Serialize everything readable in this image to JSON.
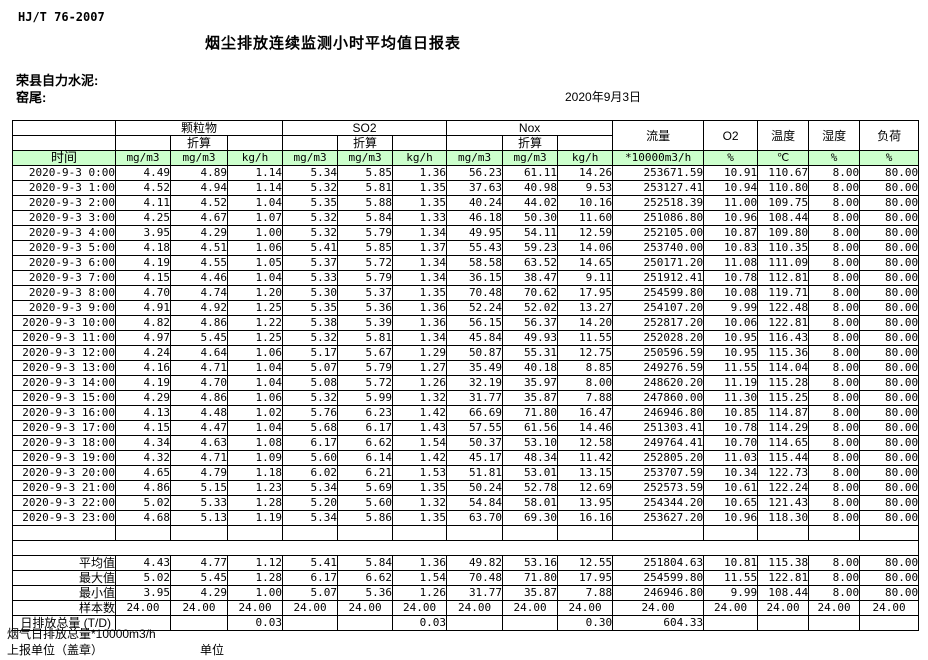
{
  "page": {
    "standard_no": "HJ/T  76-2007",
    "title": "烟尘排放连续监测小时平均值日报表",
    "company": "荣县自力水泥:",
    "location": "窑尾:",
    "date": "2020年9月3日"
  },
  "colors": {
    "header_green": "#CCFFCC",
    "border": "#000000"
  },
  "table": {
    "time_label": "时间",
    "converted_label": "折算",
    "groups": {
      "pm": "颗粒物",
      "so2": "SO2",
      "nox": "Nox",
      "flow": "流量",
      "o2": "O2",
      "temp": "温度",
      "humidity": "湿度",
      "load": "负荷"
    },
    "units": [
      "mg/m3",
      "mg/m3",
      "kg/h",
      "mg/m3",
      "mg/m3",
      "kg/h",
      "mg/m3",
      "mg/m3",
      "kg/h",
      "*10000m3/h",
      "%",
      "℃",
      "%",
      "%"
    ],
    "rows": [
      {
        "time": "2020-9-3 0:00",
        "values": [
          "4.49",
          "4.89",
          "1.14",
          "5.34",
          "5.85",
          "1.36",
          "56.23",
          "61.11",
          "14.26",
          "253671.59",
          "10.91",
          "110.67",
          "8.00",
          "80.00"
        ]
      },
      {
        "time": "2020-9-3 1:00",
        "values": [
          "4.52",
          "4.94",
          "1.14",
          "5.32",
          "5.81",
          "1.35",
          "37.63",
          "40.98",
          "9.53",
          "253127.41",
          "10.94",
          "110.80",
          "8.00",
          "80.00"
        ]
      },
      {
        "time": "2020-9-3 2:00",
        "values": [
          "4.11",
          "4.52",
          "1.04",
          "5.35",
          "5.88",
          "1.35",
          "40.24",
          "44.02",
          "10.16",
          "252518.39",
          "11.00",
          "109.75",
          "8.00",
          "80.00"
        ]
      },
      {
        "time": "2020-9-3 3:00",
        "values": [
          "4.25",
          "4.67",
          "1.07",
          "5.32",
          "5.84",
          "1.33",
          "46.18",
          "50.30",
          "11.60",
          "251086.80",
          "10.96",
          "108.44",
          "8.00",
          "80.00"
        ]
      },
      {
        "time": "2020-9-3 4:00",
        "values": [
          "3.95",
          "4.29",
          "1.00",
          "5.32",
          "5.79",
          "1.34",
          "49.95",
          "54.11",
          "12.59",
          "252105.00",
          "10.87",
          "109.80",
          "8.00",
          "80.00"
        ]
      },
      {
        "time": "2020-9-3 5:00",
        "values": [
          "4.18",
          "4.51",
          "1.06",
          "5.41",
          "5.85",
          "1.37",
          "55.43",
          "59.23",
          "14.06",
          "253740.00",
          "10.83",
          "110.35",
          "8.00",
          "80.00"
        ]
      },
      {
        "time": "2020-9-3 6:00",
        "values": [
          "4.19",
          "4.55",
          "1.05",
          "5.37",
          "5.72",
          "1.34",
          "58.58",
          "63.52",
          "14.65",
          "250171.20",
          "11.08",
          "111.09",
          "8.00",
          "80.00"
        ]
      },
      {
        "time": "2020-9-3 7:00",
        "values": [
          "4.15",
          "4.46",
          "1.04",
          "5.33",
          "5.79",
          "1.34",
          "36.15",
          "38.47",
          "9.11",
          "251912.41",
          "10.78",
          "112.81",
          "8.00",
          "80.00"
        ]
      },
      {
        "time": "2020-9-3 8:00",
        "values": [
          "4.70",
          "4.74",
          "1.20",
          "5.30",
          "5.37",
          "1.35",
          "70.48",
          "70.62",
          "17.95",
          "254599.80",
          "10.08",
          "119.71",
          "8.00",
          "80.00"
        ]
      },
      {
        "time": "2020-9-3 9:00",
        "values": [
          "4.91",
          "4.92",
          "1.25",
          "5.35",
          "5.36",
          "1.36",
          "52.24",
          "52.02",
          "13.27",
          "254107.20",
          "9.99",
          "122.48",
          "8.00",
          "80.00"
        ]
      },
      {
        "time": "2020-9-3 10:00",
        "values": [
          "4.82",
          "4.86",
          "1.22",
          "5.38",
          "5.39",
          "1.36",
          "56.15",
          "56.37",
          "14.20",
          "252817.20",
          "10.06",
          "122.81",
          "8.00",
          "80.00"
        ]
      },
      {
        "time": "2020-9-3 11:00",
        "values": [
          "4.97",
          "5.45",
          "1.25",
          "5.32",
          "5.81",
          "1.34",
          "45.84",
          "49.93",
          "11.55",
          "252028.20",
          "10.95",
          "116.43",
          "8.00",
          "80.00"
        ]
      },
      {
        "time": "2020-9-3 12:00",
        "values": [
          "4.24",
          "4.64",
          "1.06",
          "5.17",
          "5.67",
          "1.29",
          "50.87",
          "55.31",
          "12.75",
          "250596.59",
          "10.95",
          "115.36",
          "8.00",
          "80.00"
        ]
      },
      {
        "time": "2020-9-3 13:00",
        "values": [
          "4.16",
          "4.71",
          "1.04",
          "5.07",
          "5.79",
          "1.27",
          "35.49",
          "40.18",
          "8.85",
          "249276.59",
          "11.55",
          "114.04",
          "8.00",
          "80.00"
        ]
      },
      {
        "time": "2020-9-3 14:00",
        "values": [
          "4.19",
          "4.70",
          "1.04",
          "5.08",
          "5.72",
          "1.26",
          "32.19",
          "35.97",
          "8.00",
          "248620.20",
          "11.19",
          "115.28",
          "8.00",
          "80.00"
        ]
      },
      {
        "time": "2020-9-3 15:00",
        "values": [
          "4.29",
          "4.86",
          "1.06",
          "5.32",
          "5.99",
          "1.32",
          "31.77",
          "35.87",
          "7.88",
          "247860.00",
          "11.30",
          "115.25",
          "8.00",
          "80.00"
        ]
      },
      {
        "time": "2020-9-3 16:00",
        "values": [
          "4.13",
          "4.48",
          "1.02",
          "5.76",
          "6.23",
          "1.42",
          "66.69",
          "71.80",
          "16.47",
          "246946.80",
          "10.85",
          "114.87",
          "8.00",
          "80.00"
        ]
      },
      {
        "time": "2020-9-3 17:00",
        "values": [
          "4.15",
          "4.47",
          "1.04",
          "5.68",
          "6.17",
          "1.43",
          "57.55",
          "61.56",
          "14.46",
          "251303.41",
          "10.78",
          "114.29",
          "8.00",
          "80.00"
        ]
      },
      {
        "time": "2020-9-3 18:00",
        "values": [
          "4.34",
          "4.63",
          "1.08",
          "6.17",
          "6.62",
          "1.54",
          "50.37",
          "53.10",
          "12.58",
          "249764.41",
          "10.70",
          "114.65",
          "8.00",
          "80.00"
        ]
      },
      {
        "time": "2020-9-3 19:00",
        "values": [
          "4.32",
          "4.71",
          "1.09",
          "5.60",
          "6.14",
          "1.42",
          "45.17",
          "48.34",
          "11.42",
          "252805.20",
          "11.03",
          "115.44",
          "8.00",
          "80.00"
        ]
      },
      {
        "time": "2020-9-3 20:00",
        "values": [
          "4.65",
          "4.79",
          "1.18",
          "6.02",
          "6.21",
          "1.53",
          "51.81",
          "53.01",
          "13.15",
          "253707.59",
          "10.34",
          "122.73",
          "8.00",
          "80.00"
        ]
      },
      {
        "time": "2020-9-3 21:00",
        "values": [
          "4.86",
          "5.15",
          "1.23",
          "5.34",
          "5.69",
          "1.35",
          "50.24",
          "52.78",
          "12.69",
          "252573.59",
          "10.61",
          "122.24",
          "8.00",
          "80.00"
        ]
      },
      {
        "time": "2020-9-3 22:00",
        "values": [
          "5.02",
          "5.33",
          "1.28",
          "5.20",
          "5.60",
          "1.32",
          "54.84",
          "58.01",
          "13.95",
          "254344.20",
          "10.65",
          "121.43",
          "8.00",
          "80.00"
        ]
      },
      {
        "time": "2020-9-3 23:00",
        "values": [
          "4.68",
          "5.13",
          "1.19",
          "5.34",
          "5.86",
          "1.35",
          "63.70",
          "69.30",
          "16.16",
          "253627.20",
          "10.96",
          "118.30",
          "8.00",
          "80.00"
        ]
      }
    ],
    "summary": [
      {
        "label": "平均值",
        "align": "right",
        "values": [
          "4.43",
          "4.77",
          "1.12",
          "5.41",
          "5.84",
          "1.36",
          "49.82",
          "53.16",
          "12.55",
          "251804.63",
          "10.81",
          "115.38",
          "8.00",
          "80.00"
        ]
      },
      {
        "label": "最大值",
        "align": "right",
        "values": [
          "5.02",
          "5.45",
          "1.28",
          "6.17",
          "6.62",
          "1.54",
          "70.48",
          "71.80",
          "17.95",
          "254599.80",
          "11.55",
          "122.81",
          "8.00",
          "80.00"
        ]
      },
      {
        "label": "最小值",
        "align": "right",
        "values": [
          "3.95",
          "4.29",
          "1.00",
          "5.07",
          "5.36",
          "1.26",
          "31.77",
          "35.87",
          "7.88",
          "246946.80",
          "9.99",
          "108.44",
          "8.00",
          "80.00"
        ]
      },
      {
        "label": "样本数",
        "align": "center",
        "values": [
          "24.00",
          "24.00",
          "24.00",
          "24.00",
          "24.00",
          "24.00",
          "24.00",
          "24.00",
          "24.00",
          "24.00",
          "24.00",
          "24.00",
          "24.00",
          "24.00"
        ]
      },
      {
        "label": "日排放总量 (T/D)",
        "align": "right",
        "overflow": true,
        "values": [
          "",
          "",
          "0.03",
          "",
          "",
          "0.03",
          "",
          "",
          "0.30",
          "604.33",
          "",
          "",
          "",
          ""
        ]
      }
    ]
  },
  "footer": {
    "note": "烟气日排放总量*10000m3/h",
    "report_unit": "上报单位（盖章）",
    "unit_label": "单位"
  }
}
